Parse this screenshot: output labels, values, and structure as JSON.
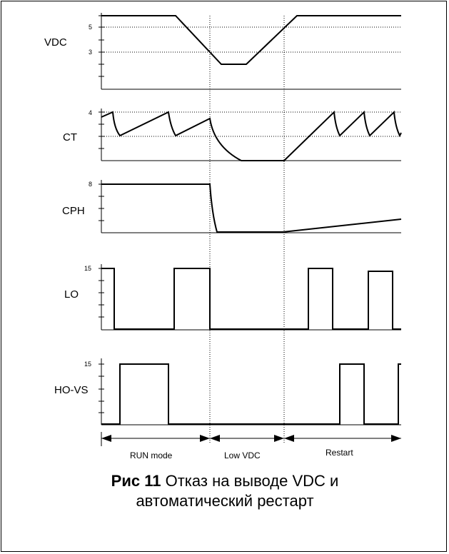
{
  "signals": [
    {
      "key": "vdc",
      "label": "VDC",
      "ticks": [
        "5",
        "3"
      ]
    },
    {
      "key": "ct",
      "label": "CT",
      "ticks": [
        "4"
      ]
    },
    {
      "key": "cph",
      "label": "CPH",
      "ticks": [
        "8"
      ]
    },
    {
      "key": "lo",
      "label": "LO",
      "ticks": [
        "15"
      ]
    },
    {
      "key": "ho",
      "label": "HO-VS",
      "ticks": [
        "15"
      ]
    }
  ],
  "phases": [
    "RUN mode",
    "Low VDC",
    "Restart"
  ],
  "caption": {
    "prefix": "Рис 11",
    "text": "Отказ на выводе VDC и автоматический рестарт"
  }
}
